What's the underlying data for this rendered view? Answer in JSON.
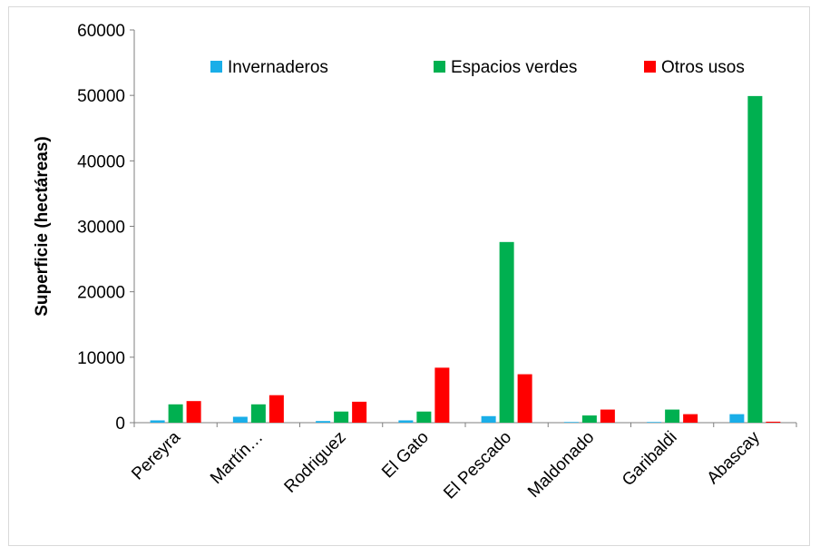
{
  "chart_data": {
    "type": "bar",
    "title": "",
    "xlabel": "",
    "ylabel": "Superficie (hectáreas)",
    "ylim": [
      0,
      60000
    ],
    "yticks": [
      0,
      10000,
      20000,
      30000,
      40000,
      50000,
      60000
    ],
    "grid": false,
    "legend_position": "top",
    "categories": [
      "Pereyra",
      "Martín…",
      "Rodriguez",
      "El Gato",
      "El Pescado",
      "Maldonado",
      "Garibaldi",
      "Abascay"
    ],
    "series": [
      {
        "name": "Invernaderos",
        "color": "#1aaee8",
        "values": [
          350,
          900,
          250,
          350,
          1000,
          100,
          100,
          1300
        ]
      },
      {
        "name": "Espacios verdes",
        "color": "#00b050",
        "values": [
          2800,
          2800,
          1700,
          1700,
          27600,
          1100,
          2000,
          49900
        ]
      },
      {
        "name": "Otros usos",
        "color": "#ff0000",
        "values": [
          3300,
          4200,
          3200,
          8400,
          7400,
          2000,
          1300,
          150
        ]
      }
    ]
  }
}
